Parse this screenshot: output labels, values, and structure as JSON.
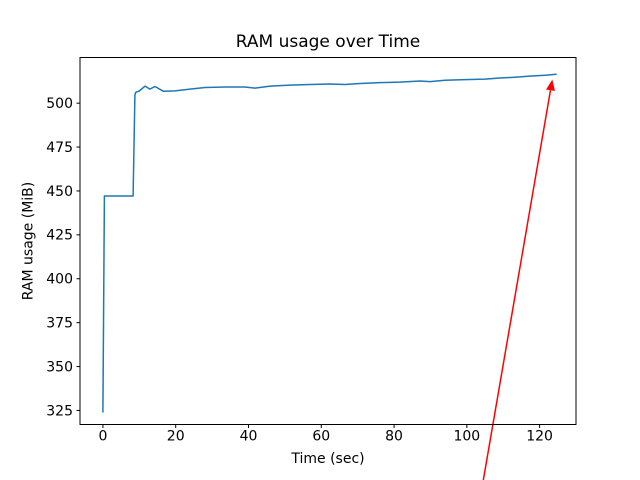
{
  "figure": {
    "background": "#ffffff",
    "spine_color": "#000000",
    "text_color": "#000000"
  },
  "chart_data": {
    "type": "line",
    "title": "RAM usage over Time",
    "xlabel": "Time (sec)",
    "ylabel": "RAM usage (MiB)",
    "grid": false,
    "legend": null,
    "xlim": [
      -6.3,
      130
    ],
    "ylim": [
      317,
      526
    ],
    "x_ticks": [
      0,
      20,
      40,
      60,
      80,
      100,
      120
    ],
    "y_ticks": [
      325,
      350,
      375,
      400,
      425,
      450,
      475,
      500
    ],
    "series": [
      {
        "color": "#1f77b4",
        "x": [
          0,
          0.4,
          8.3,
          8.8,
          9.0,
          10.0,
          11.6,
          12.9,
          14.3,
          16.6,
          19.8,
          23.9,
          28.1,
          33.6,
          39.0,
          41.8,
          45.9,
          51.4,
          56.9,
          62.4,
          66.5,
          70.7,
          76.1,
          81.6,
          87.1,
          89.9,
          94.0,
          99.5,
          105.0,
          109.1,
          113.2,
          117.3,
          121.5,
          124.5
        ],
        "y": [
          324.1,
          447.1,
          447.1,
          504.5,
          506.2,
          506.9,
          509.7,
          508.0,
          509.5,
          506.8,
          507.0,
          508.0,
          508.9,
          509.2,
          509.2,
          508.6,
          509.7,
          510.3,
          510.6,
          510.9,
          510.6,
          511.2,
          511.7,
          512.0,
          512.6,
          512.3,
          513.1,
          513.4,
          513.7,
          514.3,
          514.8,
          515.4,
          515.9,
          516.5
        ]
      }
    ],
    "annotation": {
      "type": "arrow",
      "color": "#ff0000",
      "from_xy": [
        104.5,
        285.0
      ],
      "to_xy": [
        123.5,
        513.5
      ]
    }
  }
}
